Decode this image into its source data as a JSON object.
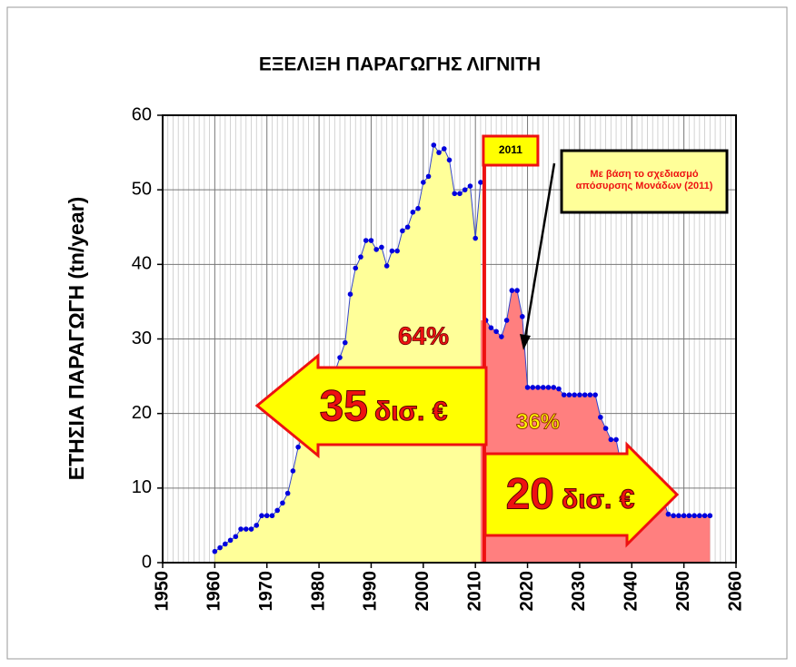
{
  "chart_data": {
    "type": "area",
    "title": "ΕΞΕΛΙΞΗ ΠΑΡΑΓΩΓΗΣ ΛΙΓΝΙΤΗ",
    "y_label": "ΕΤΗΣΙΑ ΠΑΡΑΓΩΓΗ (tn/year)",
    "xlim": [
      1950,
      2060
    ],
    "xticks": [
      1950,
      1960,
      1970,
      1980,
      1990,
      2000,
      2010,
      2020,
      2030,
      2040,
      2050,
      2060
    ],
    "ylim": [
      0,
      60
    ],
    "yticks": [
      0,
      10,
      20,
      30,
      40,
      50,
      60
    ],
    "grid": true,
    "minor_x_grid": true,
    "line_color": "#3344cc",
    "marker_color": "#0000dd",
    "series": [
      {
        "color": "#ffff99",
        "x": [
          1960,
          1961,
          1962,
          1963,
          1964,
          1965,
          1966,
          1967,
          1968,
          1969,
          1970,
          1971,
          1972,
          1973,
          1974,
          1975,
          1976,
          1977,
          1978,
          1979,
          1980,
          1981,
          1982,
          1983,
          1984,
          1985,
          1986,
          1987,
          1988,
          1989,
          1990,
          1991,
          1992,
          1993,
          1994,
          1995,
          1996,
          1997,
          1998,
          1999,
          2000,
          2001,
          2002,
          2003,
          2004,
          2005,
          2006,
          2007,
          2008,
          2009,
          2010,
          2011
        ],
        "values": [
          1.5,
          2,
          2.5,
          3,
          3.5,
          4.5,
          4.5,
          4.5,
          5,
          6.3,
          6.3,
          6.3,
          7,
          8,
          9.3,
          12.3,
          15.5,
          17.5,
          19.5,
          21,
          22,
          23,
          24,
          25.5,
          27.5,
          29.5,
          36,
          39.5,
          41,
          43.2,
          43.2,
          42,
          42.3,
          39.8,
          41.8,
          41.8,
          44.5,
          45,
          47,
          47.5,
          51,
          51.8,
          56,
          55,
          55.5,
          54,
          49.5,
          49.5,
          50,
          50.5,
          43.5,
          51
        ]
      },
      {
        "color": "#ff7f7f",
        "x": [
          2012,
          2013,
          2014,
          2015,
          2016,
          2017,
          2018,
          2019,
          2020,
          2021,
          2022,
          2023,
          2024,
          2025,
          2026,
          2027,
          2028,
          2029,
          2030,
          2031,
          2032,
          2033,
          2034,
          2035,
          2036,
          2037,
          2038,
          2039,
          2040,
          2041,
          2042,
          2043,
          2044,
          2045,
          2046,
          2047,
          2048,
          2049,
          2050,
          2051,
          2052,
          2053,
          2054,
          2055
        ],
        "values": [
          32.5,
          31.5,
          31,
          30.3,
          32.5,
          36.5,
          36.5,
          33,
          23.5,
          23.5,
          23.5,
          23.5,
          23.5,
          23.5,
          23.3,
          22.5,
          22.5,
          22.5,
          22.5,
          22.5,
          22.5,
          22.5,
          19.5,
          18,
          16.5,
          16.5,
          13,
          12,
          11.5,
          11,
          10.5,
          10,
          9.5,
          9,
          8.5,
          6.5,
          6.3,
          6.3,
          6.3,
          6.3,
          6.3,
          6.3,
          6.3,
          6.3
        ]
      }
    ],
    "annotations": {
      "vline": 2011,
      "note": [
        "Με βάση το σχεδιασμό",
        "απόσυρσης Μονάδων (2011)"
      ],
      "share_past": "64%",
      "share_future": "36%",
      "cost_past": {
        "amount": "35",
        "unit": "δισ. €"
      },
      "cost_future": {
        "amount": "20",
        "unit": "δισ. €"
      }
    }
  }
}
